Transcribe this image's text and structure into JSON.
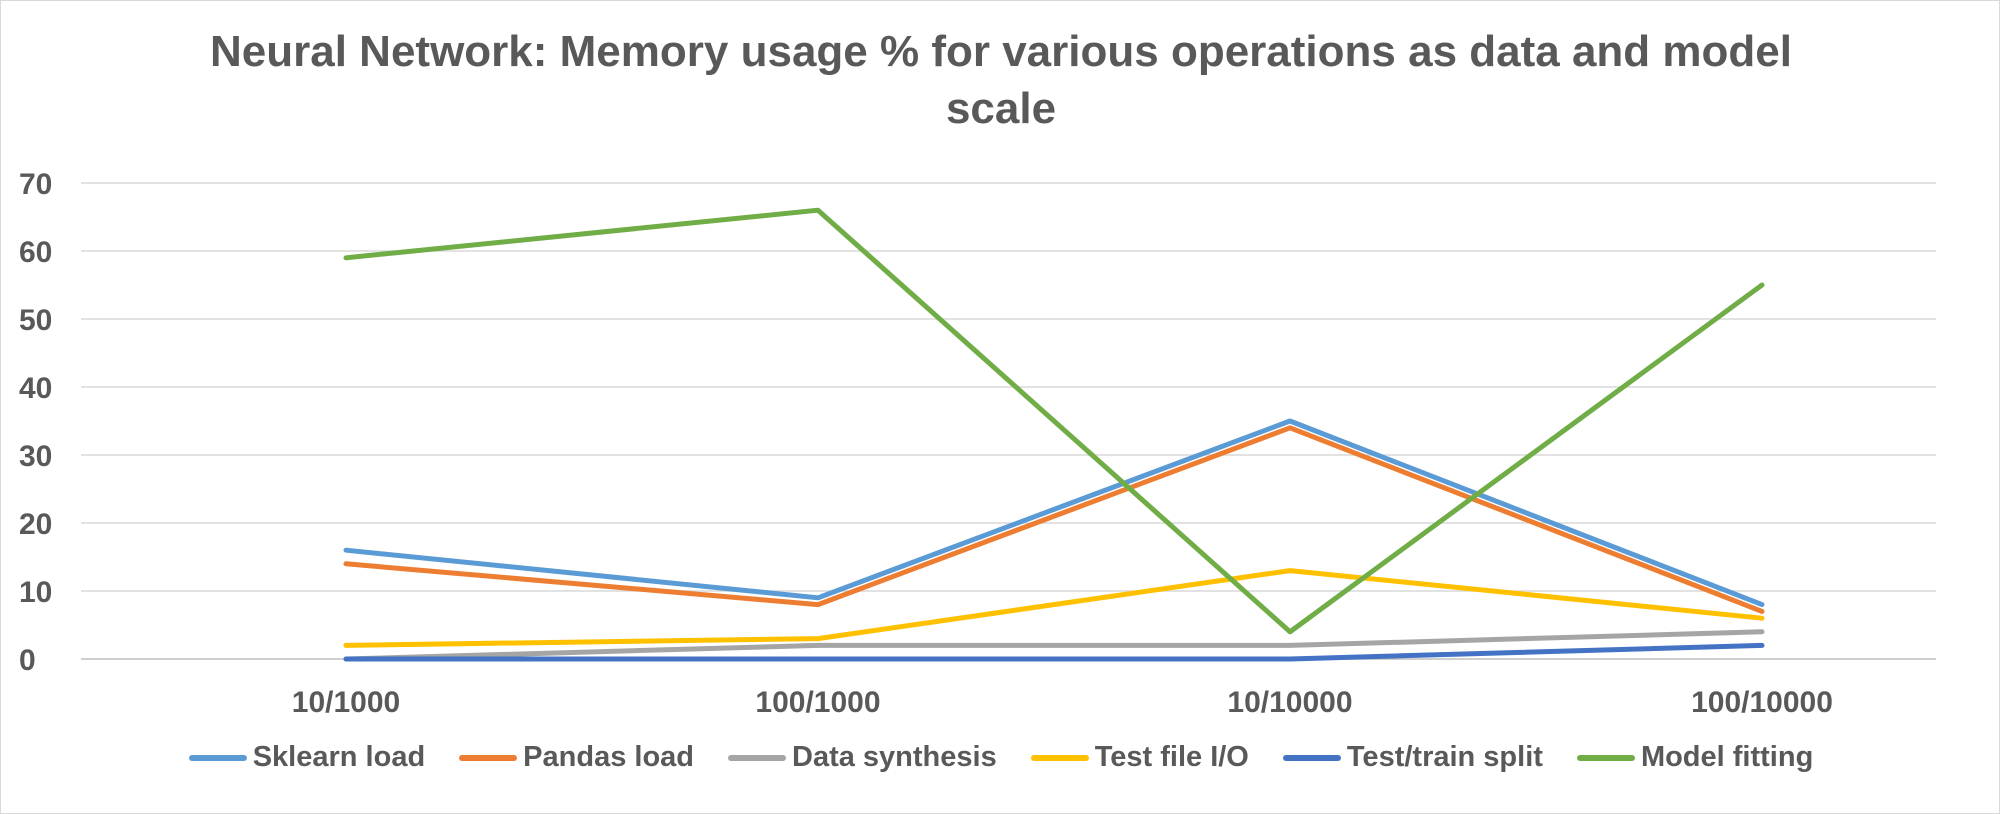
{
  "chart_data": {
    "type": "line",
    "title": "Neural Network: Memory usage % for various operations as data and model scale",
    "title_lines": [
      "Neural Network: Memory usage % for various operations as data and model",
      "scale"
    ],
    "categories": [
      "10/1000",
      "100/1000",
      "10/10000",
      "100/10000"
    ],
    "ylim": [
      0,
      70
    ],
    "yticks": [
      0,
      10,
      20,
      30,
      40,
      50,
      60,
      70
    ],
    "grid": true,
    "legend_position": "bottom",
    "series": [
      {
        "name": "Sklearn load",
        "color": "#5b9bd5",
        "values": [
          16,
          9,
          35,
          8
        ]
      },
      {
        "name": "Pandas load",
        "color": "#ed7d31",
        "values": [
          14,
          8,
          34,
          7
        ]
      },
      {
        "name": "Data synthesis",
        "color": "#a5a5a5",
        "values": [
          0,
          2,
          2,
          4
        ]
      },
      {
        "name": "Test file I/O",
        "color": "#ffc000",
        "values": [
          2,
          3,
          13,
          6
        ]
      },
      {
        "name": "Test/train split",
        "color": "#4472c4",
        "values": [
          0,
          0,
          0,
          2
        ]
      },
      {
        "name": "Model fitting",
        "color": "#70ad47",
        "values": [
          59,
          66,
          4,
          55
        ]
      }
    ]
  }
}
